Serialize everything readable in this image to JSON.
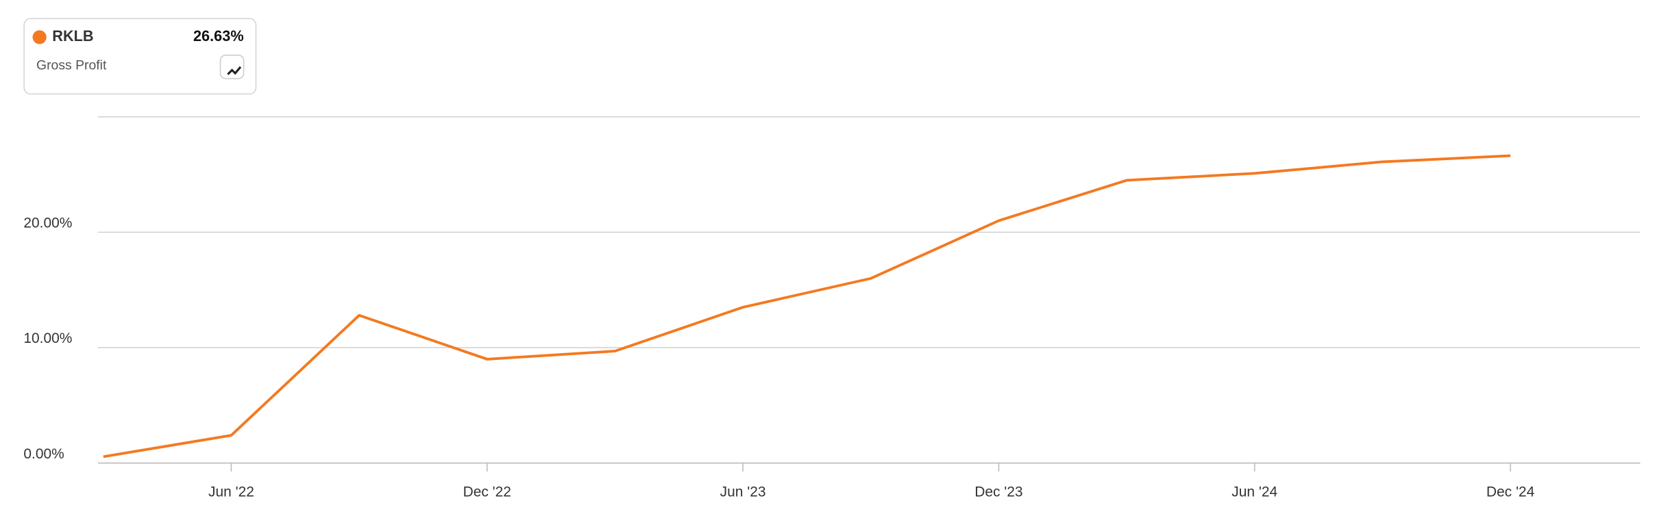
{
  "chart_data": {
    "type": "line",
    "legend": {
      "name": "RKLB",
      "current_label": "26.63%",
      "metric": "Gross Profit"
    },
    "categories": [
      null,
      "Jun '22",
      null,
      "Dec '22",
      null,
      "Jun '23",
      null,
      "Dec '23",
      null,
      "Jun '24",
      null,
      "Dec '24"
    ],
    "series": [
      {
        "name": "RKLB",
        "color": "#f47920",
        "values": [
          0.55,
          2.4,
          12.8,
          9.0,
          9.7,
          13.5,
          16.0,
          21.0,
          24.5,
          25.1,
          26.1,
          26.63
        ]
      }
    ],
    "ylim": [
      0,
      30
    ],
    "yticks": [
      {
        "value": 0,
        "label": "0.00%"
      },
      {
        "value": 10,
        "label": "10.00%"
      },
      {
        "value": 20,
        "label": "20.00%"
      }
    ],
    "grid": true
  }
}
